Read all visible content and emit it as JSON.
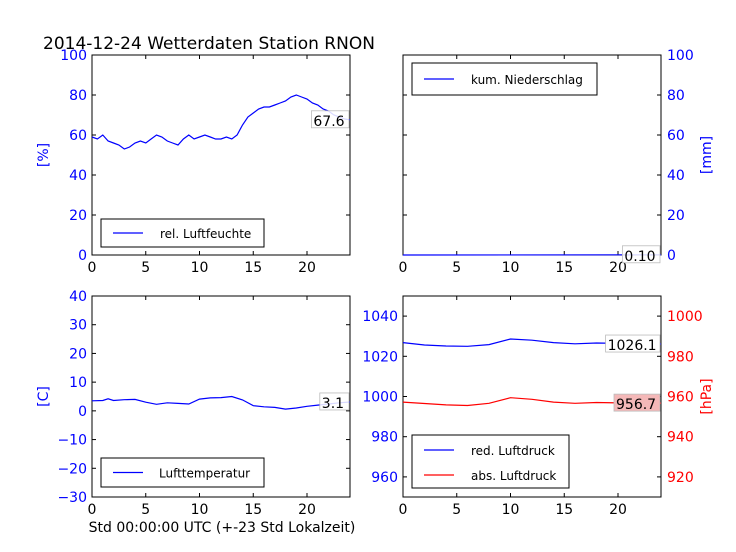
{
  "title": "2014-12-24 Wetterdaten Station RNON",
  "footer": "Std 00:00:00 UTC (+-23 Std Lokalzeit)",
  "colors": {
    "blue": "#0000ff",
    "red": "#ff0000",
    "black": "#000000",
    "red_box": "#f4b8b8"
  },
  "chart_data": [
    {
      "type": "line",
      "legend": "rel. Luftfeuchte",
      "legend_position": "lower-left",
      "ylabel": "[%]",
      "ylabel_side": "left",
      "xlim": [
        0,
        24
      ],
      "ylim": [
        0,
        100
      ],
      "xticks": [
        0,
        5,
        10,
        15,
        20
      ],
      "yticks": [
        0,
        20,
        40,
        60,
        80,
        100
      ],
      "last_value_label": "67.6",
      "series": [
        {
          "color": "#0000ff",
          "x": [
            0,
            0.5,
            1,
            1.5,
            2,
            2.5,
            3,
            3.5,
            4,
            4.5,
            5,
            5.5,
            6,
            6.5,
            7,
            7.5,
            8,
            8.5,
            9,
            9.5,
            10,
            10.5,
            11,
            11.5,
            12,
            12.5,
            13,
            13.5,
            14,
            14.5,
            15,
            15.5,
            16,
            16.5,
            17,
            17.5,
            18,
            18.5,
            19,
            19.5,
            20,
            20.5,
            21,
            21.5,
            22,
            22.5,
            23,
            23.5,
            24
          ],
          "y": [
            59,
            58,
            60,
            57,
            56,
            55,
            53,
            54,
            56,
            57,
            56,
            58,
            60,
            59,
            57,
            56,
            55,
            58,
            60,
            58,
            59,
            60,
            59,
            58,
            58,
            59,
            58,
            60,
            65,
            69,
            71,
            73,
            74,
            74,
            75,
            76,
            77,
            79,
            80,
            79,
            78,
            76,
            75,
            73,
            72,
            70,
            69,
            68,
            67.6
          ]
        }
      ]
    },
    {
      "type": "line",
      "legend": "kum. Niederschlag",
      "legend_position": "upper-left",
      "ylabel": "[mm]",
      "ylabel_side": "right",
      "xlim": [
        0,
        24
      ],
      "ylim": [
        0,
        100
      ],
      "xticks": [
        0,
        5,
        10,
        15,
        20
      ],
      "yticks": [
        0,
        20,
        40,
        60,
        80,
        100
      ],
      "last_value_label": "0.10",
      "series": [
        {
          "color": "#0000ff",
          "x": [
            0,
            24
          ],
          "y": [
            0,
            0.1
          ]
        }
      ]
    },
    {
      "type": "line",
      "legend": "Lufttemperatur",
      "legend_position": "lower-left",
      "ylabel": "[C]",
      "ylabel_side": "left",
      "xlim": [
        0,
        24
      ],
      "ylim": [
        -30,
        40
      ],
      "xticks": [
        0,
        5,
        10,
        15,
        20
      ],
      "yticks": [
        -30,
        -20,
        -10,
        0,
        10,
        20,
        30,
        40
      ],
      "last_value_label": "3.1",
      "series": [
        {
          "color": "#0000ff",
          "x": [
            0,
            1,
            1.5,
            2,
            3,
            4,
            5,
            6,
            7,
            8,
            9,
            10,
            11,
            12,
            13,
            14,
            15,
            16,
            17,
            18,
            19,
            20,
            21,
            22,
            23,
            24
          ],
          "y": [
            3.5,
            3.6,
            4.2,
            3.6,
            3.9,
            4.0,
            3.0,
            2.3,
            2.8,
            2.6,
            2.4,
            4.1,
            4.5,
            4.6,
            5.0,
            3.8,
            1.8,
            1.4,
            1.2,
            0.6,
            1.0,
            1.6,
            2.0,
            2.4,
            2.8,
            3.1
          ]
        }
      ]
    },
    {
      "type": "line",
      "legend_position": "lower-left",
      "ylabel": "[hPa]",
      "ylabel_side": "right",
      "xlim": [
        0,
        24
      ],
      "ylim_left": [
        950,
        1050
      ],
      "ylim_right": [
        910,
        1010
      ],
      "xticks": [
        0,
        5,
        10,
        15,
        20
      ],
      "yticks_left": [
        960,
        980,
        1000,
        1020,
        1040
      ],
      "yticks_right": [
        920,
        940,
        960,
        980,
        1000
      ],
      "series": [
        {
          "name": "red. Luftdruck",
          "axis": "left",
          "color": "#0000ff",
          "last_value_label": "1026.1",
          "x": [
            0,
            2,
            4,
            6,
            8,
            10,
            12,
            14,
            16,
            18,
            20,
            22,
            24
          ],
          "y": [
            1026.8,
            1025.6,
            1025.1,
            1025.0,
            1025.8,
            1028.6,
            1028.0,
            1026.8,
            1026.2,
            1026.6,
            1026.4,
            1026.2,
            1026.1
          ]
        },
        {
          "name": "abs. Luftdruck",
          "axis": "right",
          "color": "#ff0000",
          "last_value_label": "956.7",
          "x": [
            0,
            2,
            4,
            6,
            8,
            10,
            12,
            14,
            16,
            18,
            20,
            22,
            24
          ],
          "y": [
            957.2,
            956.5,
            955.8,
            955.5,
            956.6,
            959.4,
            958.6,
            957.2,
            956.6,
            957.0,
            956.8,
            956.7,
            956.7
          ]
        }
      ]
    }
  ]
}
